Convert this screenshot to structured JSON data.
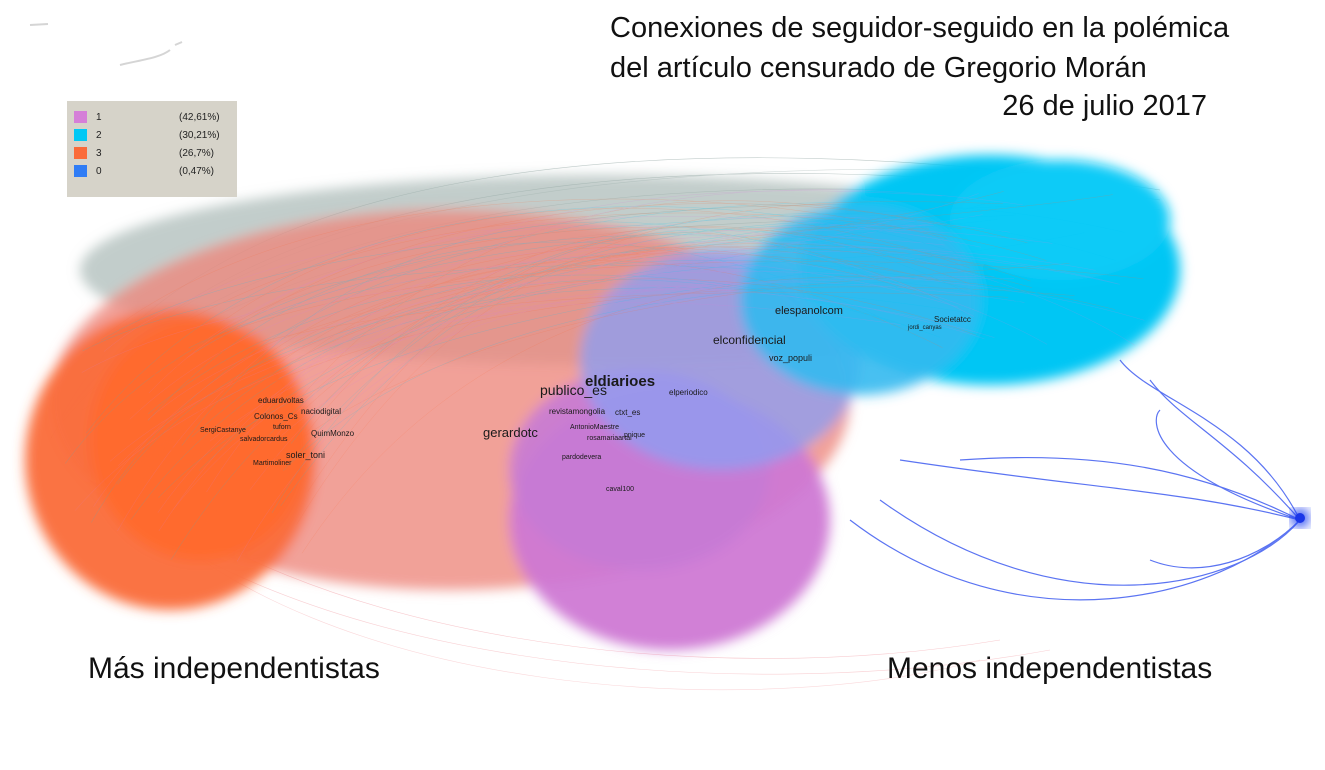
{
  "title": {
    "line1": "Conexiones de seguidor-seguido en la polémica",
    "line2": "del artículo censurado de Gregorio Morán",
    "date": "26 de julio 2017"
  },
  "legend": [
    {
      "id": "1",
      "percent": "(42,61%)",
      "color": "#d57fd8"
    },
    {
      "id": "2",
      "percent": "(30,21%)",
      "color": "#00c8f5"
    },
    {
      "id": "3",
      "percent": "(26,7%)",
      "color": "#fa6b3a"
    },
    {
      "id": "0",
      "percent": "(0,47%)",
      "color": "#2f7cf5"
    }
  ],
  "side_labels": {
    "left": "Más independentistas",
    "right": "Menos independentistas"
  },
  "nodes": {
    "eldiarioes": "eldiarioes",
    "publico_es": "publico_es",
    "gerardotc": "gerardotc",
    "elconfidencial": "elconfidencial",
    "elespanolcom": "elespanolcom",
    "voz_populi": "voz_populi",
    "elperiodico": "elperiodico",
    "revistamongolia": "revistamongolia",
    "ctxt_es": "ctxt_es",
    "antoniomaestre": "AntonioMaestre",
    "rosamariaartal": "rosamariaartal",
    "pnique": "pnique",
    "pardodevera": "pardodevera",
    "caval100": "caval100",
    "eduardvoltas": "eduardvoltas",
    "nacio_digital": "naciodigital",
    "colonos_cs": "Colonos_Cs",
    "sergicastanye": "SergiCastanye",
    "salvadorcardus": "salvadorcardus",
    "quimmonzo": "QuimMonzo",
    "soler_toni": "soler_toni",
    "martimoliner": "Martimoliner",
    "tuforn": "tuforn",
    "societatcc": "Societatcc",
    "jordi_canyas": "jordi_canyas"
  }
}
